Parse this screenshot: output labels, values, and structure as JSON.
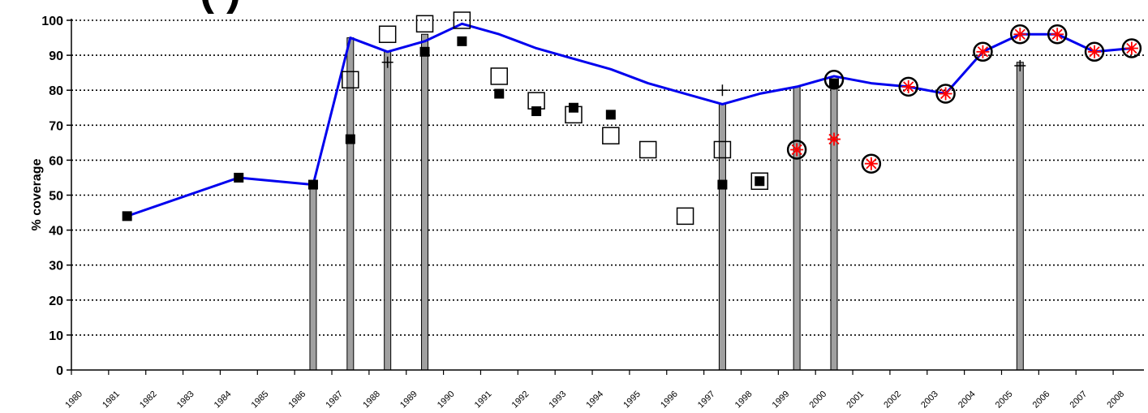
{
  "chart_data": {
    "type": "line",
    "title": "(         )",
    "ylabel": "% coverage",
    "xlabel": "",
    "ylim": [
      0,
      100
    ],
    "yticks": [
      0,
      10,
      20,
      30,
      40,
      50,
      60,
      70,
      80,
      90,
      100
    ],
    "grid": "horizontal dotted",
    "x_tick_labels": [
      "1980",
      "1981",
      "1982",
      "1983",
      "1984",
      "1985",
      "1986",
      "1987",
      "1988",
      "1989",
      "1990",
      "1991",
      "1992",
      "1993",
      "1994",
      "1995",
      "1996",
      "1997",
      "1998",
      "1999",
      "2000",
      "2001",
      "2002",
      "2003",
      "2004",
      "2005",
      "2006",
      "2007",
      "2008"
    ],
    "series": [
      {
        "style": "line",
        "color": "#0000ee",
        "x": [
          1981,
          1984,
          1986,
          1987,
          1988,
          1989,
          1990,
          1991,
          1992,
          1993,
          1994,
          1995,
          1996,
          1997,
          1998,
          1999,
          2000,
          2001,
          2002,
          2003,
          2004,
          2005,
          2006,
          2007,
          2008
        ],
        "values": [
          44,
          55,
          53,
          95,
          91,
          94,
          99,
          96,
          92,
          89,
          86,
          82,
          79,
          76,
          79,
          81,
          84,
          82,
          81,
          79,
          91,
          96,
          96,
          91,
          92
        ]
      },
      {
        "style": "bars",
        "color": "#a0a0a0",
        "x": [
          1986,
          1987,
          1988,
          1989,
          1997,
          1999,
          2000,
          2005
        ],
        "values": [
          53,
          95,
          91,
          96,
          76,
          81,
          83,
          88
        ]
      },
      {
        "style": "filled-square",
        "color": "#000000",
        "x": [
          1981,
          1984,
          1986,
          1987,
          1989,
          1990,
          1991,
          1992,
          1993,
          1994,
          1997,
          1998,
          2000
        ],
        "values": [
          44,
          55,
          53,
          66,
          91,
          94,
          79,
          74,
          75,
          73,
          53,
          54,
          82
        ]
      },
      {
        "style": "open-square",
        "color": "#000000",
        "x": [
          1987,
          1988,
          1989,
          1990,
          1991,
          1992,
          1993,
          1994,
          1995,
          1996,
          1997,
          1998
        ],
        "values": [
          83,
          96,
          99,
          100,
          84,
          77,
          73,
          67,
          63,
          44,
          63,
          54
        ]
      },
      {
        "style": "plus",
        "color": "#000000",
        "x": [
          1988,
          1997,
          2005
        ],
        "values": [
          88,
          80,
          87
        ]
      },
      {
        "style": "open-circle",
        "color": "#000000",
        "x": [
          1999,
          2000,
          2001,
          2002,
          2003,
          2004,
          2005,
          2006,
          2007,
          2008
        ],
        "values": [
          63,
          83,
          59,
          81,
          79,
          91,
          96,
          96,
          91,
          92
        ]
      },
      {
        "style": "red-star",
        "color": "#ff0000",
        "x": [
          1999,
          2000,
          2001,
          2002,
          2003,
          2004,
          2005,
          2006,
          2007,
          2008
        ],
        "values": [
          63,
          66,
          59,
          81,
          79,
          91,
          96,
          96,
          91,
          92
        ]
      }
    ]
  },
  "colors": {
    "line": "#0000ee",
    "bar_fill": "#a0a0a0",
    "marker": "#000000",
    "star": "#ff0000"
  }
}
